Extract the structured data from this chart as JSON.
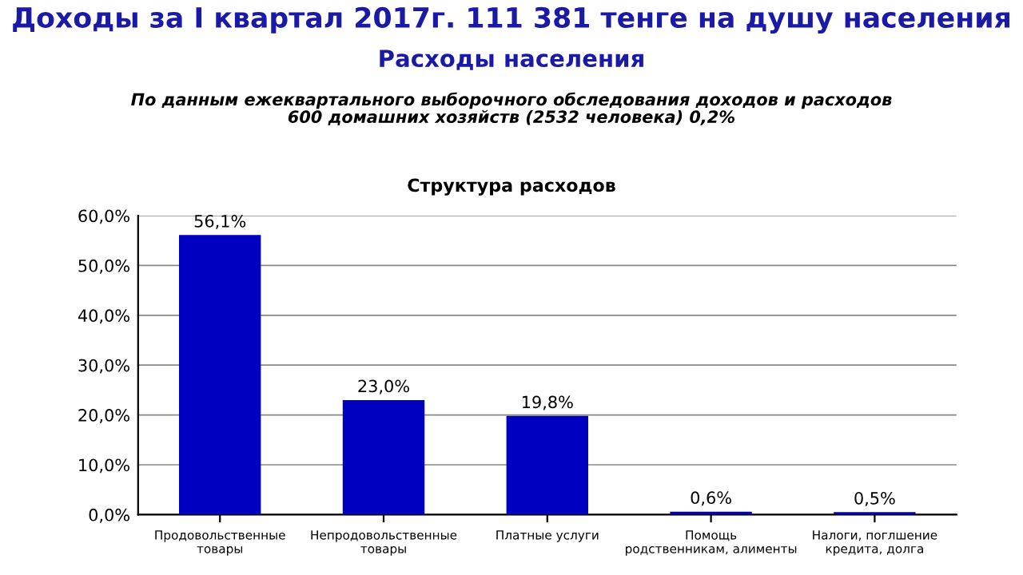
{
  "chart_data": {
    "type": "bar",
    "title": "Доходы за I квартал 2017г. 111 381 тенге на душу населения",
    "subtitle": "Расходы населения",
    "annotations": [
      "По данным ежеквартального выборочного обследования доходов и расходов\n600 домашних хозяйств (2532 человека) 0,2%",
      "Структура расходов"
    ],
    "categories": [
      "Продовольственные\nтовары",
      "Непродовольственные\nтовары",
      "Платные услуги",
      "Помощь\nродственникам, алименты",
      "Налоги, поглшение\nкредита, долга"
    ],
    "values": [
      56.1,
      23.0,
      19.8,
      0.6,
      0.5
    ],
    "value_labels": [
      "56,1%",
      "23,0%",
      "19,8%",
      "0,6%",
      "0,5%"
    ],
    "color": "#0000c0",
    "ylim": [
      0,
      60
    ],
    "yticks": [
      {
        "value": 0,
        "label": "0,0%"
      },
      {
        "value": 10,
        "label": "10,0%"
      },
      {
        "value": 20,
        "label": "20,0%"
      },
      {
        "value": 30,
        "label": "30,0%"
      },
      {
        "value": 40,
        "label": "40,0%"
      },
      {
        "value": 50,
        "label": "50,0%"
      },
      {
        "value": 60,
        "label": "60,0%"
      }
    ],
    "grid": "y"
  }
}
